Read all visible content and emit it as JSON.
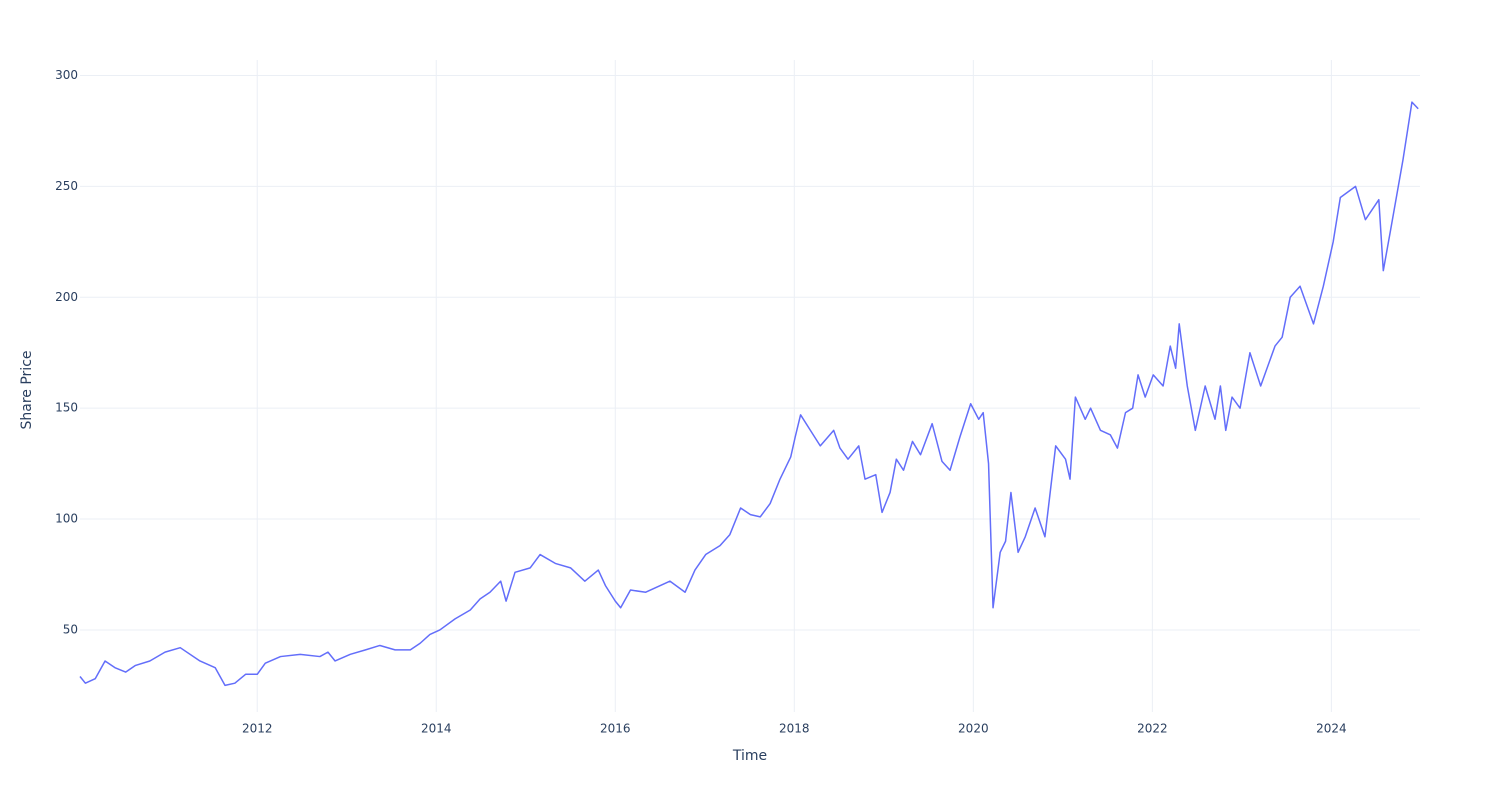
{
  "chart_data": {
    "type": "line",
    "x_label": "Time",
    "y_label": "Share Price",
    "xlim": [
      2010.02,
      2024.99
    ],
    "ylim": [
      13,
      307
    ],
    "xticks": [
      2012,
      2014,
      2016,
      2018,
      2020,
      2022,
      2024
    ],
    "yticks": [
      50,
      100,
      150,
      200,
      250,
      300
    ],
    "grid": true,
    "x": [
      2010.02,
      2010.08,
      2010.19,
      2010.3,
      2010.41,
      2010.53,
      2010.64,
      2010.8,
      2010.97,
      2011.14,
      2011.36,
      2011.53,
      2011.64,
      2011.75,
      2011.87,
      2012.0,
      2012.09,
      2012.26,
      2012.48,
      2012.7,
      2012.79,
      2012.87,
      2013.04,
      2013.21,
      2013.37,
      2013.54,
      2013.71,
      2013.82,
      2013.93,
      2014.04,
      2014.21,
      2014.38,
      2014.49,
      2014.6,
      2014.72,
      2014.78,
      2014.88,
      2015.05,
      2015.16,
      2015.33,
      2015.5,
      2015.66,
      2015.81,
      2015.89,
      2016.0,
      2016.06,
      2016.17,
      2016.34,
      2016.61,
      2016.78,
      2016.89,
      2017.01,
      2017.17,
      2017.28,
      2017.4,
      2017.51,
      2017.62,
      2017.73,
      2017.84,
      2017.96,
      2018.01,
      2018.07,
      2018.18,
      2018.29,
      2018.44,
      2018.51,
      2018.6,
      2018.72,
      2018.79,
      2018.91,
      2018.98,
      2019.07,
      2019.14,
      2019.22,
      2019.32,
      2019.41,
      2019.54,
      2019.65,
      2019.74,
      2019.85,
      2019.97,
      2020.06,
      2020.11,
      2020.17,
      2020.22,
      2020.3,
      2020.36,
      2020.42,
      2020.5,
      2020.58,
      2020.69,
      2020.8,
      2020.92,
      2021.03,
      2021.08,
      2021.14,
      2021.25,
      2021.31,
      2021.42,
      2021.53,
      2021.61,
      2021.7,
      2021.78,
      2021.84,
      2021.92,
      2022.01,
      2022.12,
      2022.2,
      2022.26,
      2022.3,
      2022.39,
      2022.48,
      2022.59,
      2022.7,
      2022.76,
      2022.82,
      2022.89,
      2022.98,
      2023.09,
      2023.21,
      2023.37,
      2023.45,
      2023.54,
      2023.65,
      2023.8,
      2023.91,
      2024.02,
      2024.1,
      2024.27,
      2024.38,
      2024.53,
      2024.58,
      2024.66,
      2024.8,
      2024.9,
      2024.97
    ],
    "series": [
      {
        "color": "#636efa",
        "values": [
          29,
          26,
          28,
          36,
          33,
          31,
          34,
          36,
          40,
          42,
          36,
          33,
          25,
          26,
          30,
          30,
          35,
          38,
          39,
          38,
          40,
          36,
          39,
          41,
          43,
          41,
          41,
          44,
          48,
          50,
          55,
          59,
          64,
          67,
          72,
          63,
          76,
          78,
          84,
          80,
          78,
          72,
          77,
          70,
          63,
          60,
          68,
          67,
          72,
          67,
          77,
          84,
          88,
          93,
          105,
          102,
          101,
          107,
          118,
          128,
          137,
          147,
          140,
          133,
          140,
          132,
          127,
          133,
          118,
          120,
          103,
          112,
          127,
          122,
          135,
          129,
          143,
          126,
          122,
          137,
          152,
          145,
          148,
          125,
          60,
          85,
          90,
          112,
          85,
          92,
          105,
          92,
          133,
          127,
          118,
          155,
          145,
          150,
          140,
          138,
          132,
          148,
          150,
          165,
          155,
          165,
          160,
          178,
          168,
          188,
          160,
          140,
          160,
          145,
          160,
          140,
          155,
          150,
          175,
          160,
          178,
          182,
          200,
          205,
          188,
          205,
          225,
          245,
          250,
          235,
          244,
          212,
          230,
          262,
          288,
          285
        ]
      }
    ]
  }
}
